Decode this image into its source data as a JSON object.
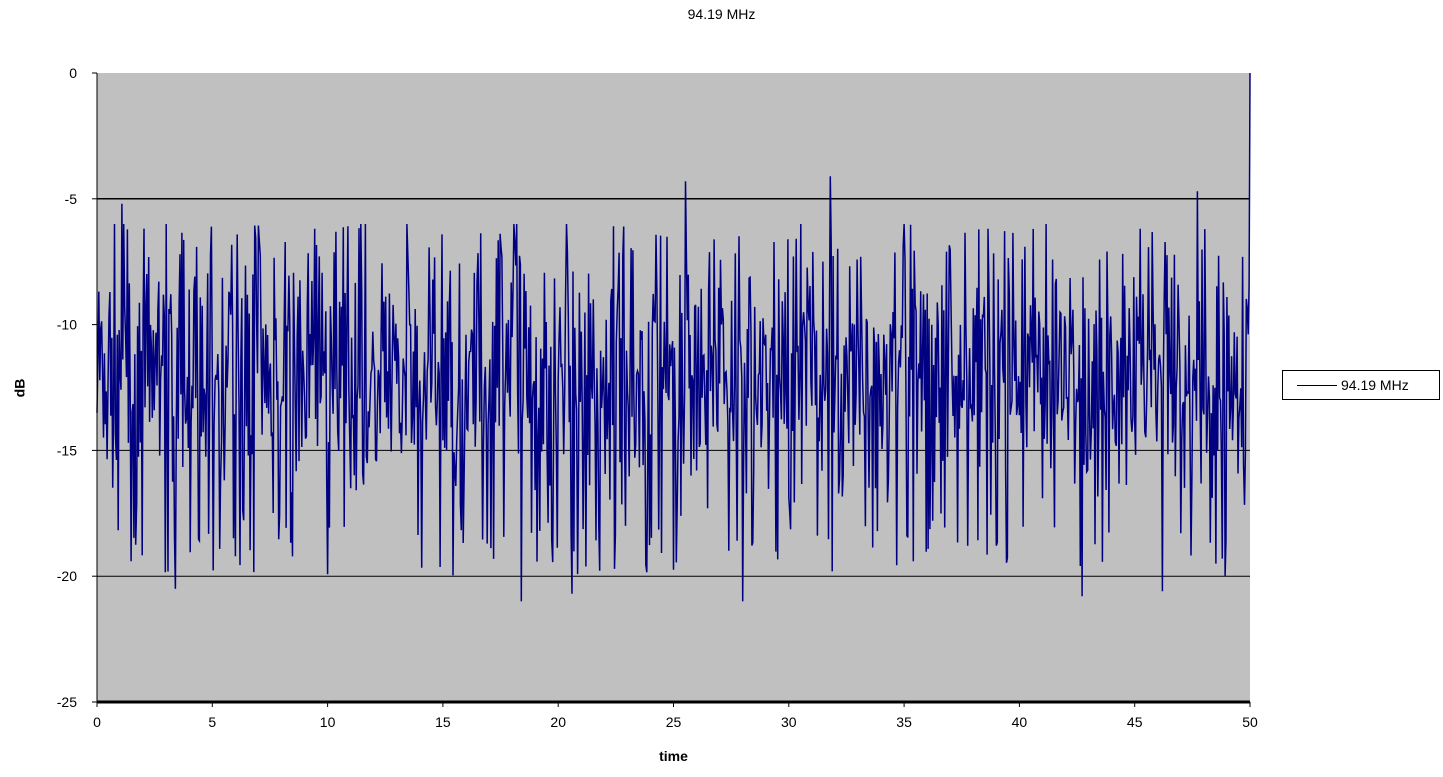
{
  "chart_data": {
    "type": "line",
    "title": "94.19 MHz",
    "xlabel": "time",
    "ylabel": "dB",
    "xlim": [
      0,
      50
    ],
    "ylim": [
      -25,
      0
    ],
    "x_ticks": [
      0,
      5,
      10,
      15,
      20,
      25,
      30,
      35,
      40,
      45,
      50
    ],
    "y_ticks": [
      0,
      -5,
      -10,
      -15,
      -20,
      -25
    ],
    "gridlines_y": [
      -5,
      -15,
      -20
    ],
    "plot_background": "#c0c0c0",
    "series_color": "#000080",
    "legend_position": "right",
    "legend_entries": [
      "94.19 MHz"
    ],
    "sample_interval": 0.04,
    "series": [
      {
        "name": "94.19 MHz",
        "color": "#000080",
        "peaks": [
          {
            "x": 1.1,
            "y": -5.2
          },
          {
            "x": 25.5,
            "y": -4.3
          },
          {
            "x": 31.8,
            "y": -4.1
          },
          {
            "x": 47.7,
            "y": -4.7
          },
          {
            "x": 50,
            "y": 0
          }
        ],
        "troughs": [
          {
            "x": 3.4,
            "y": -20.5
          },
          {
            "x": 18.4,
            "y": -21.0
          },
          {
            "x": 20.6,
            "y": -20.7
          },
          {
            "x": 28.0,
            "y": -21.0
          },
          {
            "x": 42.7,
            "y": -20.8
          },
          {
            "x": 46.2,
            "y": -20.6
          }
        ],
        "typical_mean": -12.0,
        "typical_range": [
          -20,
          -6
        ]
      }
    ]
  }
}
